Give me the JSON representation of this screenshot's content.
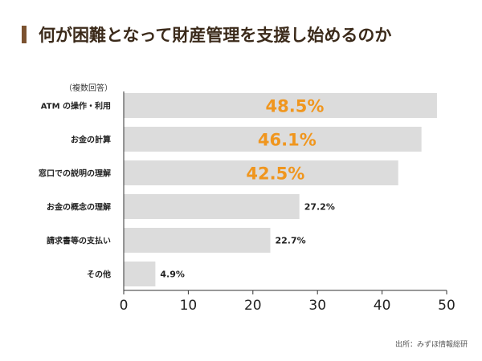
{
  "title": "何が困難となって財産管理を支援し始めるのか",
  "note": "（複数回答）",
  "source": "出所：みずほ情報総研",
  "colors": {
    "bar": "#dcdcdc",
    "highlight": "#f0961e",
    "text": "#222222",
    "title_accent": "#7b5230",
    "axis": "#333333"
  },
  "chart_data": {
    "type": "bar",
    "orientation": "horizontal",
    "categories": [
      "ATM の操作・利用",
      "お金の計算",
      "窓口での説明の理解",
      "お金の概念の理解",
      "請求書等の支払い",
      "その他"
    ],
    "values": [
      48.5,
      46.1,
      42.5,
      27.2,
      22.7,
      4.9
    ],
    "value_labels": [
      "48.5%",
      "46.1%",
      "42.5%",
      "27.2%",
      "22.7%",
      "4.9%"
    ],
    "highlighted": [
      true,
      true,
      true,
      false,
      false,
      false
    ],
    "xlim": [
      0,
      50
    ],
    "xticks": [
      "0",
      "10",
      "20",
      "30",
      "40",
      "50"
    ],
    "grid": false,
    "title": "何が困難となって財産管理を支援し始めるのか"
  }
}
